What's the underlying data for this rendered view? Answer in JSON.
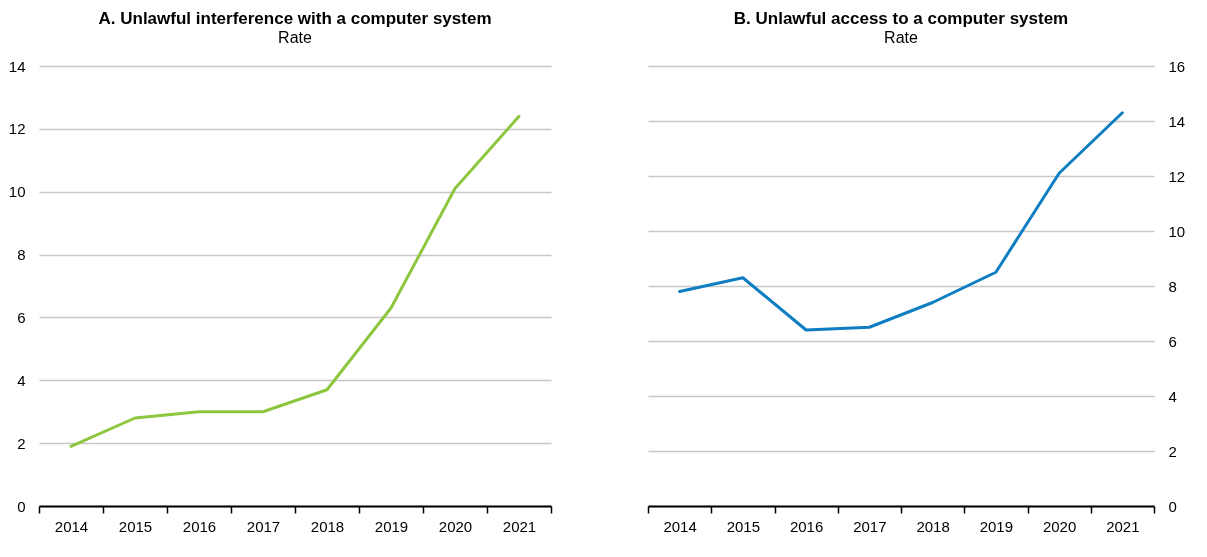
{
  "chart_data": [
    {
      "type": "line",
      "title": "A. Unlawful interference with a computer system",
      "subtitle": "Rate",
      "categories": [
        "2014",
        "2015",
        "2016",
        "2017",
        "2018",
        "2019",
        "2020",
        "2021"
      ],
      "series": [
        {
          "color": "#8dc63f",
          "values": [
            1.9,
            2.8,
            3.0,
            3.0,
            3.7,
            6.3,
            10.1,
            12.4
          ]
        }
      ],
      "ylim": [
        0,
        14
      ],
      "yticks": [
        0,
        2,
        4,
        6,
        8,
        10,
        12,
        14
      ],
      "grid": "y"
    },
    {
      "type": "line",
      "title": "B. Unlawful access to a computer system",
      "subtitle": "Rate",
      "categories": [
        "2014",
        "2015",
        "2016",
        "2017",
        "2018",
        "2019",
        "2020",
        "2021"
      ],
      "series": [
        {
          "color": "#0f7dc2",
          "values": [
            7.8,
            8.3,
            6.4,
            6.5,
            7.4,
            8.5,
            12.1,
            14.3
          ],
          "axis": "y2"
        }
      ],
      "y2lim": [
        0,
        16
      ],
      "y2ticks": [
        0,
        2,
        4,
        6,
        8,
        10,
        12,
        14,
        16
      ],
      "grid": "y"
    }
  ]
}
